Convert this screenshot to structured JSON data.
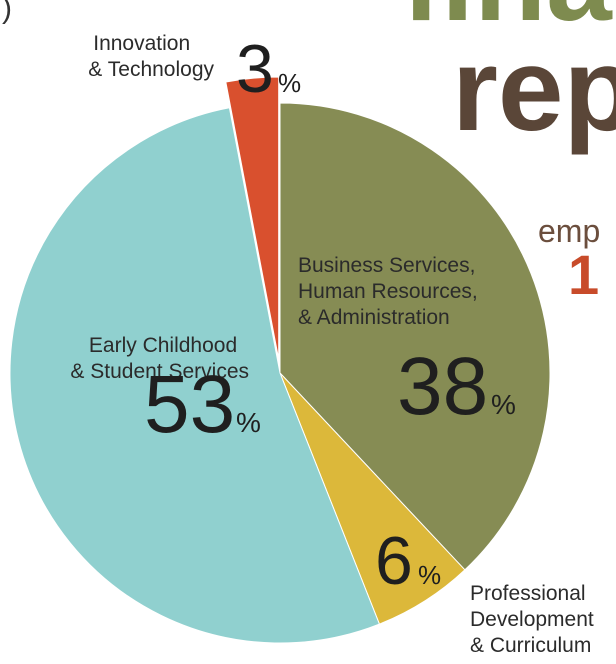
{
  "header": {
    "title_line1": "finan",
    "title_line2": "rep",
    "side_word": "emp",
    "side_number": "1",
    "edge_mark": ")"
  },
  "colors": {
    "title_green": "#7e8b4f",
    "title_brown": "#5a4638",
    "side_brown": "#6b4e3d",
    "side_red": "#c84b2a",
    "text_dark": "#1f1f1f"
  },
  "chart_data": {
    "type": "pie",
    "start_angle_deg": 0,
    "direction": "clockwise",
    "slices": [
      {
        "key": "business",
        "label_lines": [
          "Business Services,",
          "Human Resources,",
          "& Administration"
        ],
        "value": 38,
        "pct_text": "38",
        "color": "#868c54"
      },
      {
        "key": "professional",
        "label_lines": [
          "Professional",
          "Development",
          "& Curriculum"
        ],
        "value": 6,
        "pct_text": "6",
        "color": "#dcb83a"
      },
      {
        "key": "early",
        "label_lines": [
          "Early Childhood",
          "& Student Services"
        ],
        "value": 53,
        "pct_text": "53",
        "color": "#90d0cf"
      },
      {
        "key": "innovation",
        "label_lines": [
          "Innovation",
          "& Technology"
        ],
        "value": 3,
        "pct_text": "3",
        "color": "#d9502e",
        "exploded": true
      }
    ],
    "pct_suffix": "%"
  }
}
